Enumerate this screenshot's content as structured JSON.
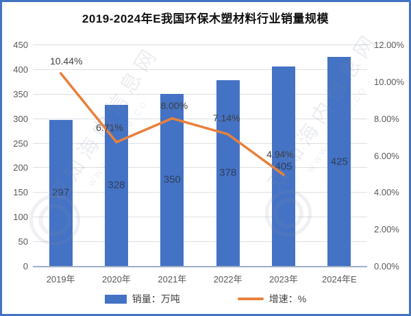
{
  "chart_data": {
    "type": "bar+line",
    "title": "2019-2024年E我国环保木塑材料行业销量规模",
    "categories": [
      "2019年",
      "2020年",
      "2021年",
      "2022年",
      "2023年",
      "2024年E"
    ],
    "series": [
      {
        "name": "销量：万吨",
        "type": "bar",
        "axis": "left",
        "values": [
          297,
          328,
          350,
          378,
          405,
          425
        ],
        "labels": [
          "297",
          "328",
          "350",
          "378",
          "405",
          "425"
        ],
        "color": "#4472C4"
      },
      {
        "name": "增速：%",
        "type": "line",
        "axis": "right",
        "values": [
          10.44,
          6.71,
          8.0,
          7.14,
          4.94,
          null
        ],
        "labels": [
          "10.44%",
          "6.71%",
          "8.00%",
          "7.14%",
          "4.94%"
        ],
        "color": "#E8813C"
      }
    ],
    "left_axis": {
      "min": 0,
      "max": 450,
      "step": 50,
      "ticks": [
        "0",
        "50",
        "100",
        "150",
        "200",
        "250",
        "300",
        "350",
        "400",
        "450"
      ]
    },
    "right_axis": {
      "min": 0,
      "max": 12,
      "step": 2,
      "ticks": [
        "0.00%",
        "2.00%",
        "4.00%",
        "6.00%",
        "8.00%",
        "10.00%",
        "12.00%"
      ]
    },
    "grid": true,
    "legend_position": "bottom"
  },
  "watermark": {
    "brand": "观知海内信息网",
    "url_fragment": "WWW.···GOB.CO···"
  },
  "colors": {
    "bar": "#4472C4",
    "line": "#E8813C",
    "frame_border": "#4472C4",
    "gridline": "#DCDEE3",
    "axis_line": "#9FAEC9",
    "axis_text": "#595959",
    "bar_label_text": "#2F3F5C"
  }
}
